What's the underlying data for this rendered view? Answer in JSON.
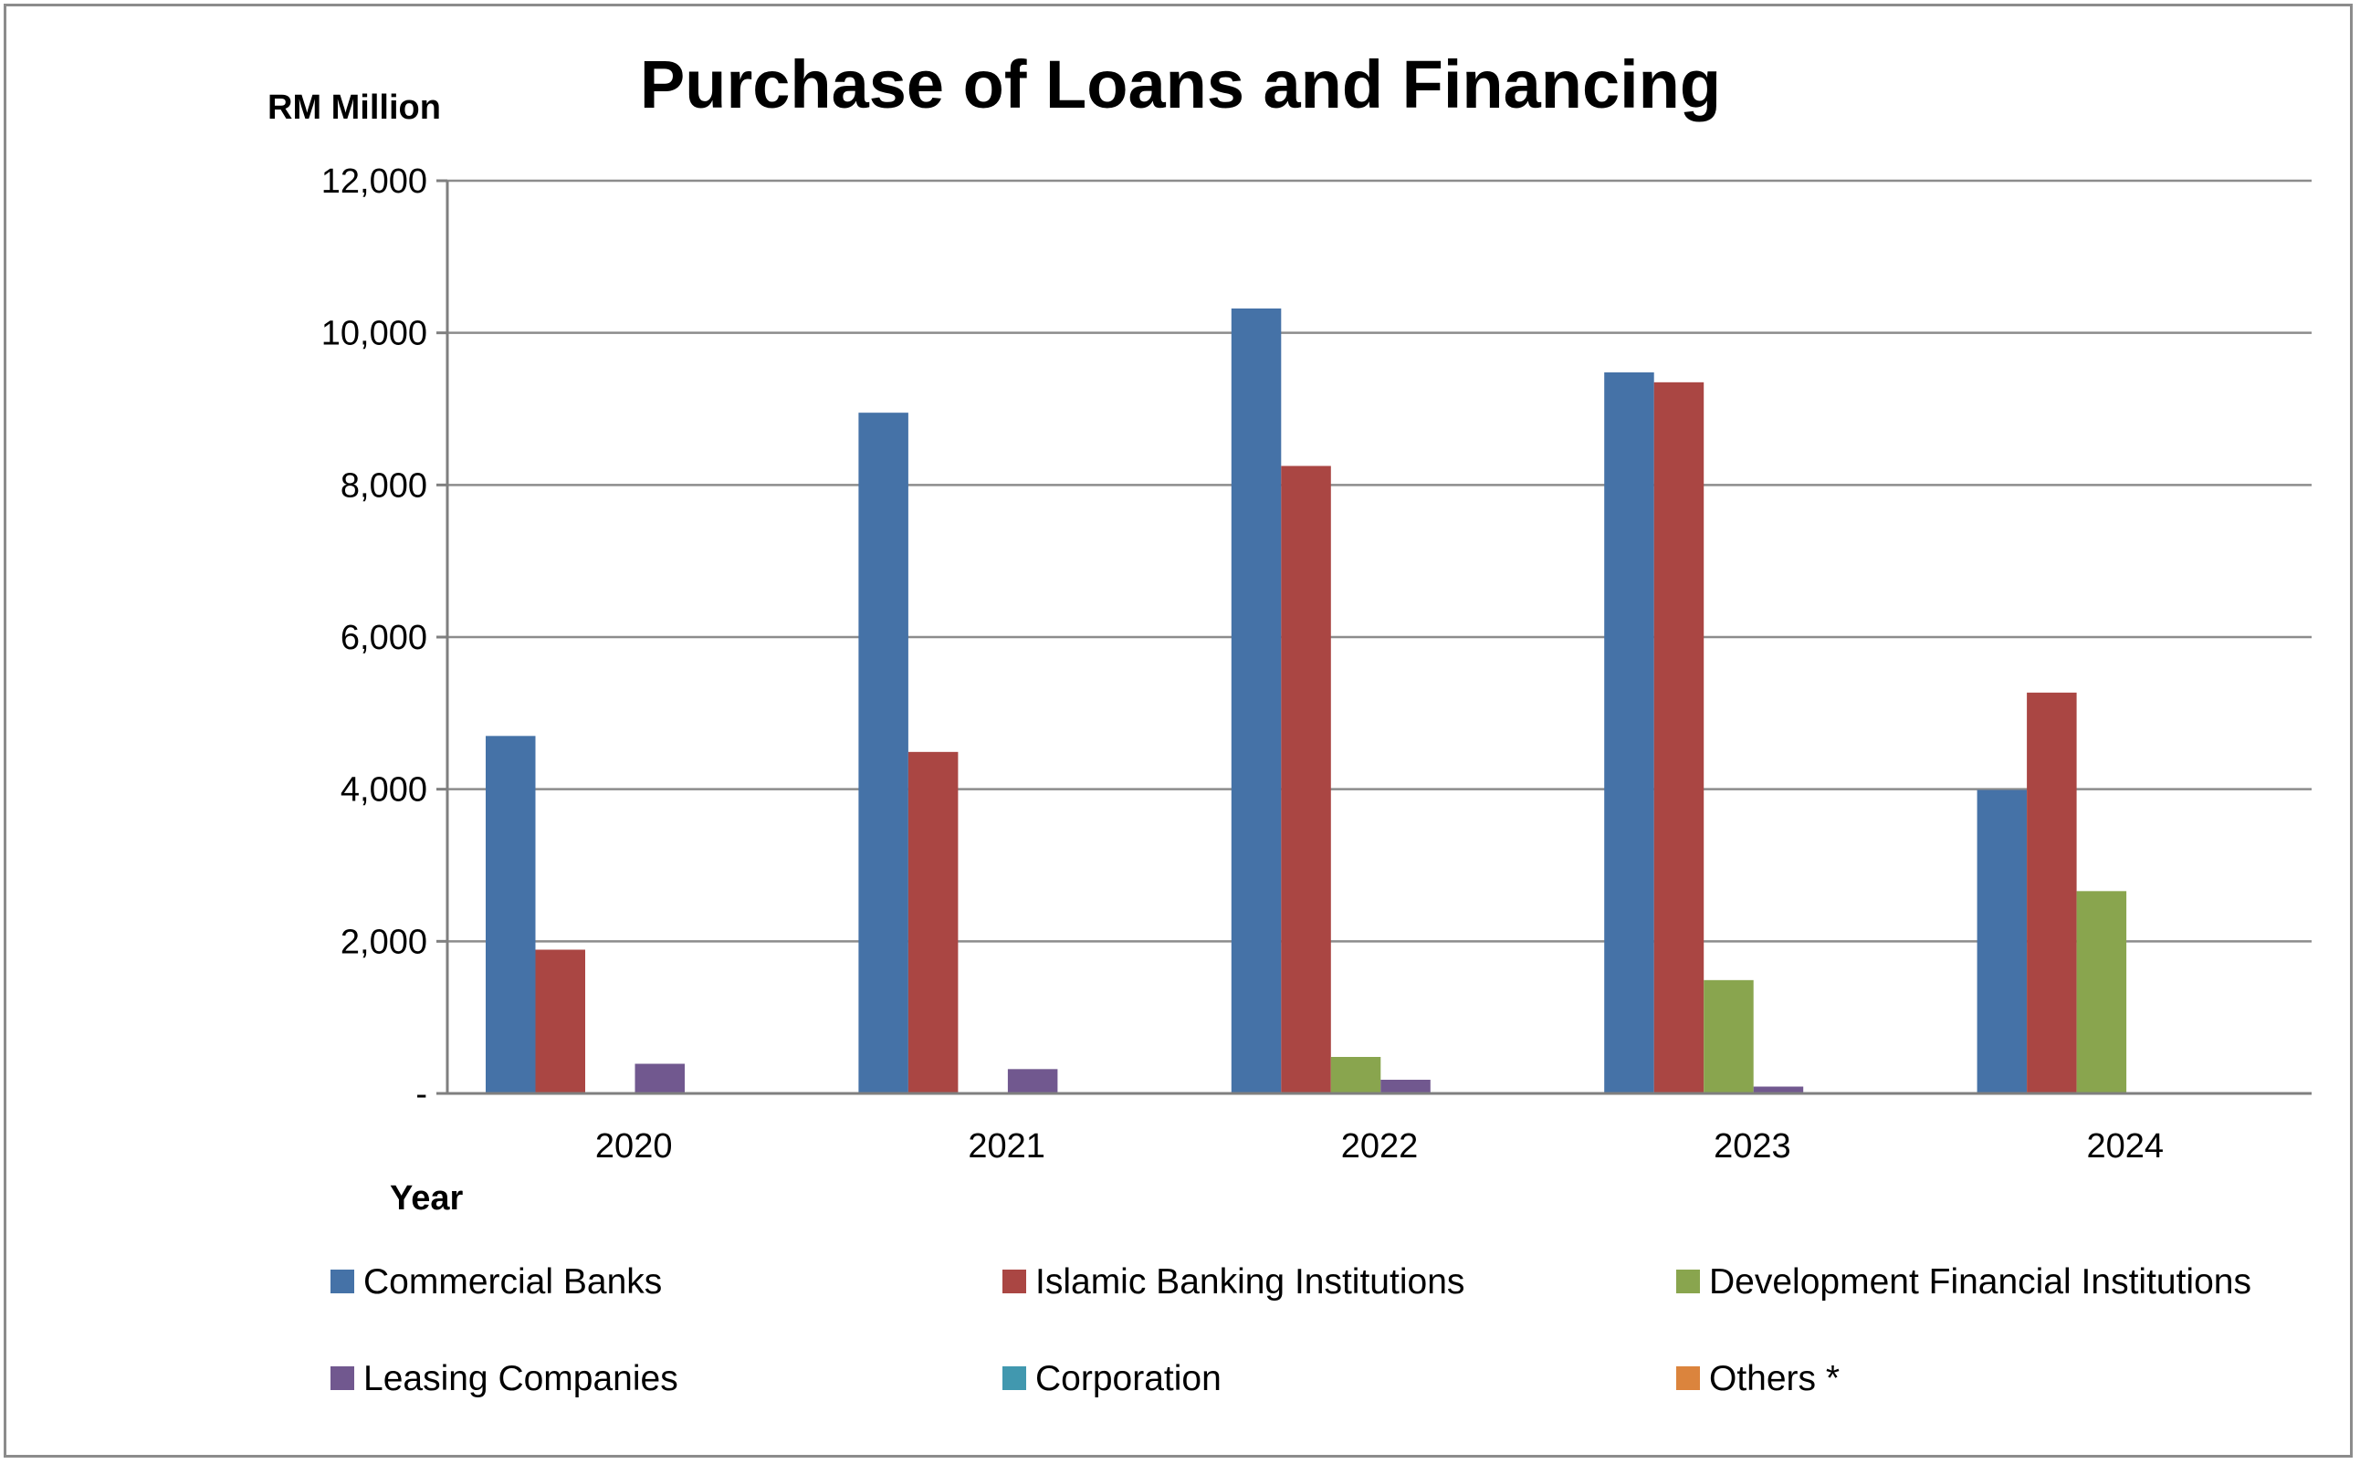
{
  "chart_data": {
    "type": "bar",
    "title": "Purchase of Loans and Financing",
    "ylabel": "RM Million",
    "xlabel": "Year",
    "categories": [
      "2020",
      "2021",
      "2022",
      "2023",
      "2024"
    ],
    "ylim": [
      0,
      12000
    ],
    "yticks": [
      0,
      2000,
      4000,
      6000,
      8000,
      10000,
      12000
    ],
    "ytick_labels": [
      "-",
      "2,000",
      "4,000",
      "6,000",
      "8,000",
      "10,000",
      "12,000"
    ],
    "grid": true,
    "legend_position": "bottom",
    "series": [
      {
        "name": "Commercial Banks",
        "color": "#4572a7",
        "values": [
          4700,
          8950,
          10320,
          9480,
          3990
        ]
      },
      {
        "name": "Islamic Banking Institutions",
        "color": "#aa4643",
        "values": [
          1890,
          4490,
          8250,
          9350,
          5270
        ]
      },
      {
        "name": "Development Financial Institutions",
        "color": "#89a54e",
        "values": [
          0,
          0,
          480,
          1490,
          2660
        ]
      },
      {
        "name": "Leasing Companies",
        "color": "#71588f",
        "values": [
          390,
          320,
          180,
          90,
          0
        ]
      },
      {
        "name": "Corporation",
        "color": "#4198af",
        "values": [
          0,
          0,
          0,
          0,
          0
        ]
      },
      {
        "name": "Others *",
        "color": "#db843d",
        "values": [
          0,
          0,
          0,
          0,
          0
        ]
      }
    ]
  }
}
